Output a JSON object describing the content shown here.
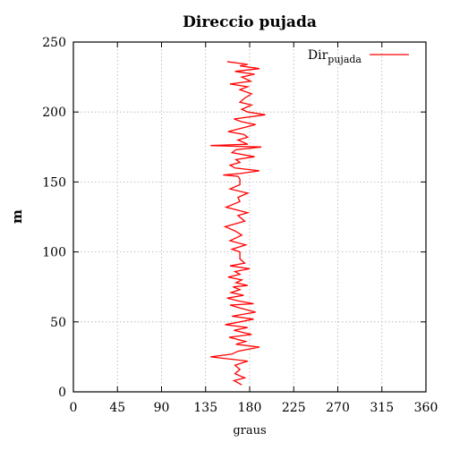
{
  "chart_data": {
    "type": "line",
    "title": "Direccio pujada",
    "xlabel": "graus",
    "ylabel": "m",
    "xlim": [
      0,
      360
    ],
    "ylim": [
      0,
      250
    ],
    "grid": true,
    "legend_position": "top-right",
    "x_ticks": [
      "0",
      "45",
      "90",
      "135",
      "180",
      "225",
      "270",
      "315",
      "360"
    ],
    "y_ticks": [
      "0",
      "50",
      "100",
      "150",
      "200",
      "250"
    ],
    "series": [
      {
        "legend_main": "Dir",
        "legend_sub": "pujada",
        "color": "#ff0000",
        "points": [
          [
            172,
            5
          ],
          [
            164,
            8
          ],
          [
            175,
            10
          ],
          [
            165,
            13
          ],
          [
            170,
            16
          ],
          [
            165,
            19
          ],
          [
            178,
            22
          ],
          [
            153,
            24
          ],
          [
            140,
            25
          ],
          [
            162,
            27
          ],
          [
            168,
            29
          ],
          [
            190,
            32
          ],
          [
            166,
            34
          ],
          [
            176,
            36
          ],
          [
            159,
            39
          ],
          [
            182,
            41
          ],
          [
            164,
            44
          ],
          [
            178,
            46
          ],
          [
            155,
            48
          ],
          [
            170,
            50
          ],
          [
            184,
            52
          ],
          [
            162,
            54
          ],
          [
            186,
            57
          ],
          [
            170,
            60
          ],
          [
            160,
            62
          ],
          [
            184,
            63
          ],
          [
            168,
            65
          ],
          [
            157,
            67
          ],
          [
            174,
            69
          ],
          [
            161,
            71
          ],
          [
            170,
            73
          ],
          [
            163,
            75
          ],
          [
            178,
            76
          ],
          [
            166,
            78
          ],
          [
            172,
            80
          ],
          [
            158,
            82
          ],
          [
            170,
            84
          ],
          [
            165,
            86
          ],
          [
            180,
            88
          ],
          [
            160,
            90
          ],
          [
            175,
            92
          ],
          [
            170,
            95
          ],
          [
            170,
            100
          ],
          [
            162,
            102
          ],
          [
            176,
            105
          ],
          [
            160,
            108
          ],
          [
            172,
            112
          ],
          [
            165,
            115
          ],
          [
            155,
            118
          ],
          [
            175,
            122
          ],
          [
            168,
            126
          ],
          [
            178,
            128
          ],
          [
            156,
            132
          ],
          [
            170,
            136
          ],
          [
            168,
            139
          ],
          [
            178,
            142
          ],
          [
            160,
            145
          ],
          [
            170,
            148
          ],
          [
            170,
            152
          ],
          [
            168,
            154
          ],
          [
            153,
            155
          ],
          [
            170,
            156
          ],
          [
            190,
            158
          ],
          [
            165,
            160
          ],
          [
            160,
            162
          ],
          [
            170,
            164
          ],
          [
            166,
            166
          ],
          [
            185,
            168
          ],
          [
            162,
            171
          ],
          [
            166,
            173
          ],
          [
            192,
            175
          ],
          [
            140,
            176
          ],
          [
            178,
            177
          ],
          [
            168,
            180
          ],
          [
            178,
            182
          ],
          [
            174,
            184
          ],
          [
            158,
            186
          ],
          [
            175,
            189
          ],
          [
            186,
            191
          ],
          [
            172,
            193
          ],
          [
            164,
            195
          ],
          [
            196,
            198
          ],
          [
            178,
            200
          ],
          [
            172,
            202
          ],
          [
            182,
            205
          ],
          [
            170,
            207
          ],
          [
            175,
            210
          ],
          [
            182,
            213
          ],
          [
            170,
            216
          ],
          [
            178,
            218
          ],
          [
            160,
            220
          ],
          [
            181,
            222
          ],
          [
            172,
            225
          ],
          [
            185,
            227
          ],
          [
            165,
            229
          ],
          [
            190,
            231
          ],
          [
            170,
            233
          ],
          [
            178,
            234
          ],
          [
            157,
            236
          ]
        ]
      }
    ]
  }
}
